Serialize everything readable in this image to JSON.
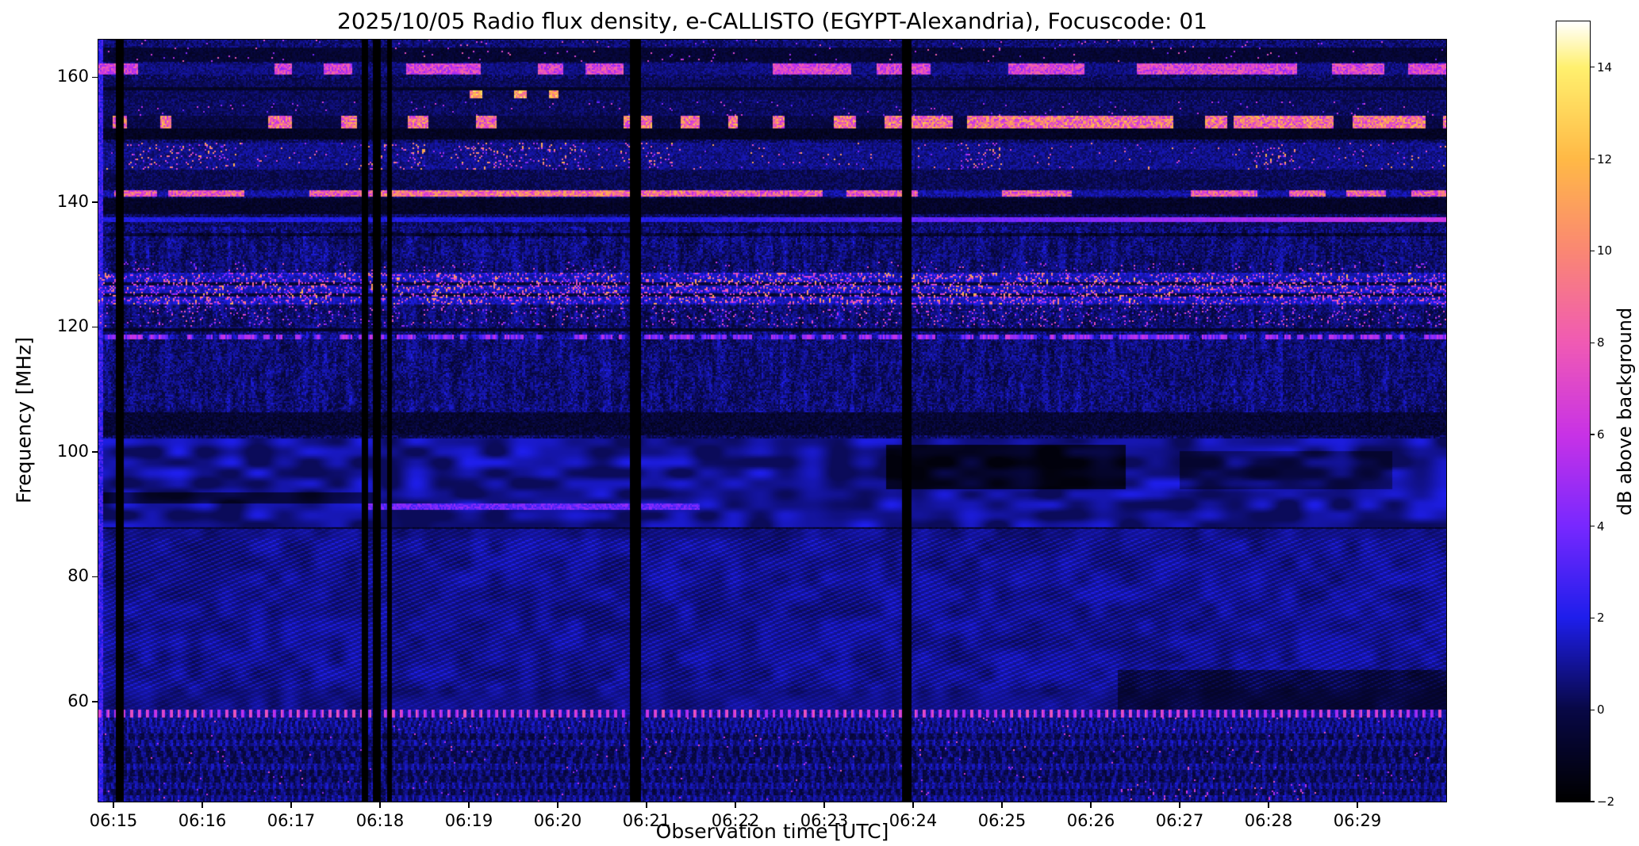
{
  "chart_data": {
    "type": "heatmap",
    "title": "2025/10/05  Radio flux density, e-CALLISTO (EGYPT-Alexandria), Focuscode: 01",
    "xlabel": "Observation time [UTC]",
    "ylabel": "Frequency [MHz]",
    "colorbar_label": "dB above background",
    "x_tick_labels": [
      "06:15",
      "06:16",
      "06:17",
      "06:18",
      "06:19",
      "06:20",
      "06:21",
      "06:22",
      "06:23",
      "06:24",
      "06:25",
      "06:26",
      "06:27",
      "06:28",
      "06:29"
    ],
    "x_tick_minutes": [
      15,
      16,
      17,
      18,
      19,
      20,
      21,
      22,
      23,
      24,
      25,
      26,
      27,
      28,
      29
    ],
    "x_range_minutes": [
      14.83,
      30.0
    ],
    "y_ticks_mhz": [
      160,
      140,
      120,
      100,
      80,
      60
    ],
    "y_range_mhz": [
      44,
      166
    ],
    "colorbar_ticks": [
      14,
      12,
      10,
      8,
      6,
      4,
      2,
      0,
      -2
    ],
    "colorbar_range": [
      -2,
      15
    ],
    "grid": false,
    "colormap_stops": [
      [
        0.0,
        0,
        0,
        0
      ],
      [
        0.118,
        8,
        8,
        70
      ],
      [
        0.235,
        30,
        30,
        235
      ],
      [
        0.353,
        120,
        40,
        255
      ],
      [
        0.47,
        200,
        50,
        230
      ],
      [
        0.588,
        240,
        90,
        180
      ],
      [
        0.706,
        250,
        135,
        115
      ],
      [
        0.824,
        255,
        185,
        70
      ],
      [
        0.941,
        255,
        240,
        110
      ],
      [
        1.0,
        255,
        255,
        255
      ]
    ],
    "data_gaps_minutes": [
      [
        15.07,
        0.1
      ],
      [
        17.83,
        0.07
      ],
      [
        17.97,
        0.09
      ],
      [
        18.1,
        0.06
      ],
      [
        20.87,
        0.11
      ],
      [
        23.93,
        0.11
      ]
    ],
    "rfi_band_frequencies_mhz": [
      161.3,
      152.8,
      147.5,
      141.3,
      137.2,
      126.0,
      121.5,
      118.4,
      91.2,
      58.0
    ],
    "dark_band_frequencies_mhz": [
      139.3,
      150.8,
      104.5,
      125.2,
      158.2
    ],
    "diagonal_interference_band_mhz": [
      58,
      87.5
    ],
    "bright_cloud_band_mhz": [
      88,
      102
    ]
  }
}
